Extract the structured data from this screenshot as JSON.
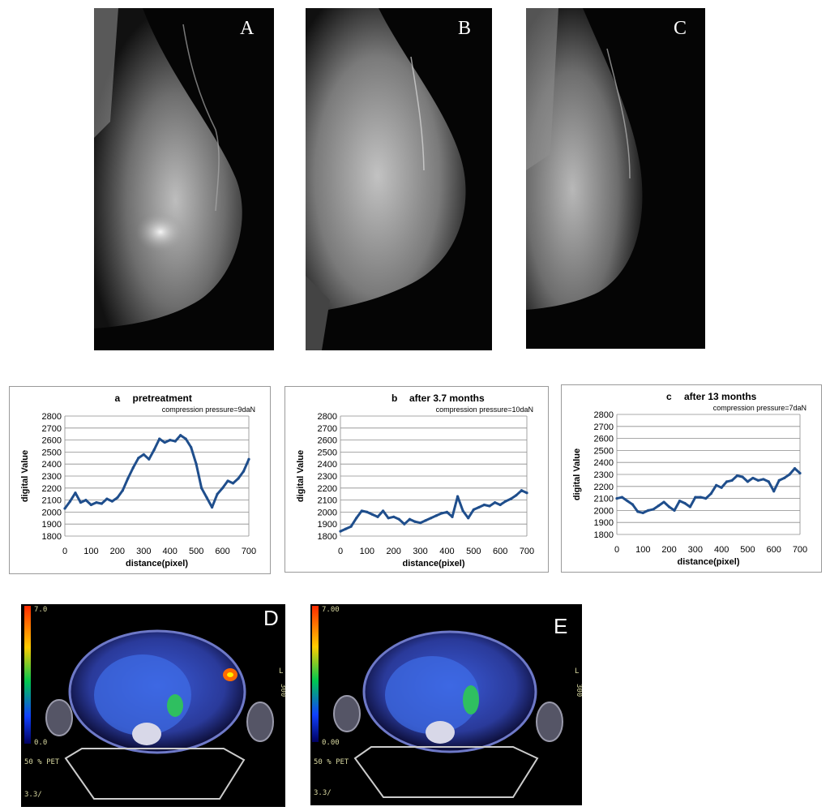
{
  "mammograms": [
    {
      "label": "A"
    },
    {
      "label": "B"
    },
    {
      "label": "C"
    }
  ],
  "pet_scans": [
    {
      "label": "D",
      "scale_top": "7.0",
      "scale_bottom": "0.0",
      "footer1": "50 % PET",
      "footer2": "3.3/",
      "side_l": "L",
      "side_num": "300"
    },
    {
      "label": "E",
      "scale_top": "7.00",
      "scale_bottom": "0.00",
      "footer1": "50 % PET",
      "footer2": "3.3/",
      "side_l": "L",
      "side_num": "300"
    }
  ],
  "chart_data": [
    {
      "type": "line",
      "panel": "a",
      "title": "pretreatment",
      "annotation": "compression pressure=9daN",
      "xlabel": "distance(pixel)",
      "ylabel": "digital Value",
      "xlim": [
        0,
        700
      ],
      "ylim": [
        1800,
        2800
      ],
      "xticks": [
        0,
        100,
        200,
        300,
        400,
        500,
        600,
        700
      ],
      "yticks": [
        1800,
        1900,
        2000,
        2100,
        2200,
        2300,
        2400,
        2500,
        2600,
        2700,
        2800
      ],
      "grid": true,
      "color": "#1f4e8c",
      "series": [
        {
          "x": [
            0,
            20,
            40,
            60,
            80,
            100,
            120,
            140,
            160,
            180,
            200,
            220,
            240,
            260,
            280,
            300,
            320,
            340,
            360,
            380,
            400,
            420,
            440,
            460,
            480,
            500,
            520,
            540,
            560,
            580,
            600,
            620,
            640,
            660,
            680,
            700
          ],
          "y": [
            2030,
            2090,
            2160,
            2080,
            2100,
            2060,
            2080,
            2070,
            2110,
            2090,
            2120,
            2180,
            2280,
            2370,
            2450,
            2480,
            2440,
            2520,
            2610,
            2580,
            2600,
            2590,
            2640,
            2610,
            2540,
            2400,
            2200,
            2120,
            2040,
            2150,
            2200,
            2260,
            2240,
            2280,
            2340,
            2440
          ]
        }
      ]
    },
    {
      "type": "line",
      "panel": "b",
      "title": "after  3.7 months",
      "annotation": "compression pressure=10daN",
      "xlabel": "distance(pixel)",
      "ylabel": "digital Value",
      "xlim": [
        0,
        700
      ],
      "ylim": [
        1800,
        2800
      ],
      "xticks": [
        0,
        100,
        200,
        300,
        400,
        500,
        600,
        700
      ],
      "yticks": [
        1800,
        1900,
        2000,
        2100,
        2200,
        2300,
        2400,
        2500,
        2600,
        2700,
        2800
      ],
      "grid": true,
      "color": "#1f4e8c",
      "series": [
        {
          "x": [
            0,
            20,
            40,
            60,
            80,
            100,
            120,
            140,
            160,
            180,
            200,
            220,
            240,
            260,
            280,
            300,
            320,
            340,
            360,
            380,
            400,
            420,
            440,
            460,
            480,
            500,
            520,
            540,
            560,
            580,
            600,
            620,
            640,
            660,
            680,
            700
          ],
          "y": [
            1840,
            1860,
            1880,
            1950,
            2010,
            2000,
            1980,
            1960,
            2010,
            1950,
            1960,
            1940,
            1900,
            1940,
            1920,
            1910,
            1930,
            1950,
            1970,
            1990,
            2000,
            1960,
            2130,
            2010,
            1950,
            2020,
            2040,
            2060,
            2050,
            2080,
            2060,
            2090,
            2110,
            2140,
            2180,
            2160
          ]
        }
      ]
    },
    {
      "type": "line",
      "panel": "c",
      "title": "after 13 months",
      "annotation": "compression pressure=7daN",
      "xlabel": "distance(pixel)",
      "ylabel": "digital Value",
      "xlim": [
        0,
        700
      ],
      "ylim": [
        1800,
        2800
      ],
      "xticks": [
        0,
        100,
        200,
        300,
        400,
        500,
        600,
        700
      ],
      "yticks": [
        1800,
        1900,
        2000,
        2100,
        2200,
        2300,
        2400,
        2500,
        2600,
        2700,
        2800
      ],
      "grid": true,
      "color": "#1f4e8c",
      "series": [
        {
          "x": [
            0,
            20,
            40,
            60,
            80,
            100,
            120,
            140,
            160,
            180,
            200,
            220,
            240,
            260,
            280,
            300,
            320,
            340,
            360,
            380,
            400,
            420,
            440,
            460,
            480,
            500,
            520,
            540,
            560,
            580,
            600,
            620,
            640,
            660,
            680,
            700
          ],
          "y": [
            2100,
            2110,
            2080,
            2050,
            1990,
            1980,
            2000,
            2010,
            2040,
            2070,
            2030,
            2000,
            2080,
            2060,
            2030,
            2110,
            2110,
            2100,
            2140,
            2210,
            2190,
            2240,
            2250,
            2290,
            2280,
            2240,
            2270,
            2250,
            2260,
            2240,
            2160,
            2250,
            2270,
            2300,
            2350,
            2310
          ]
        }
      ]
    }
  ]
}
